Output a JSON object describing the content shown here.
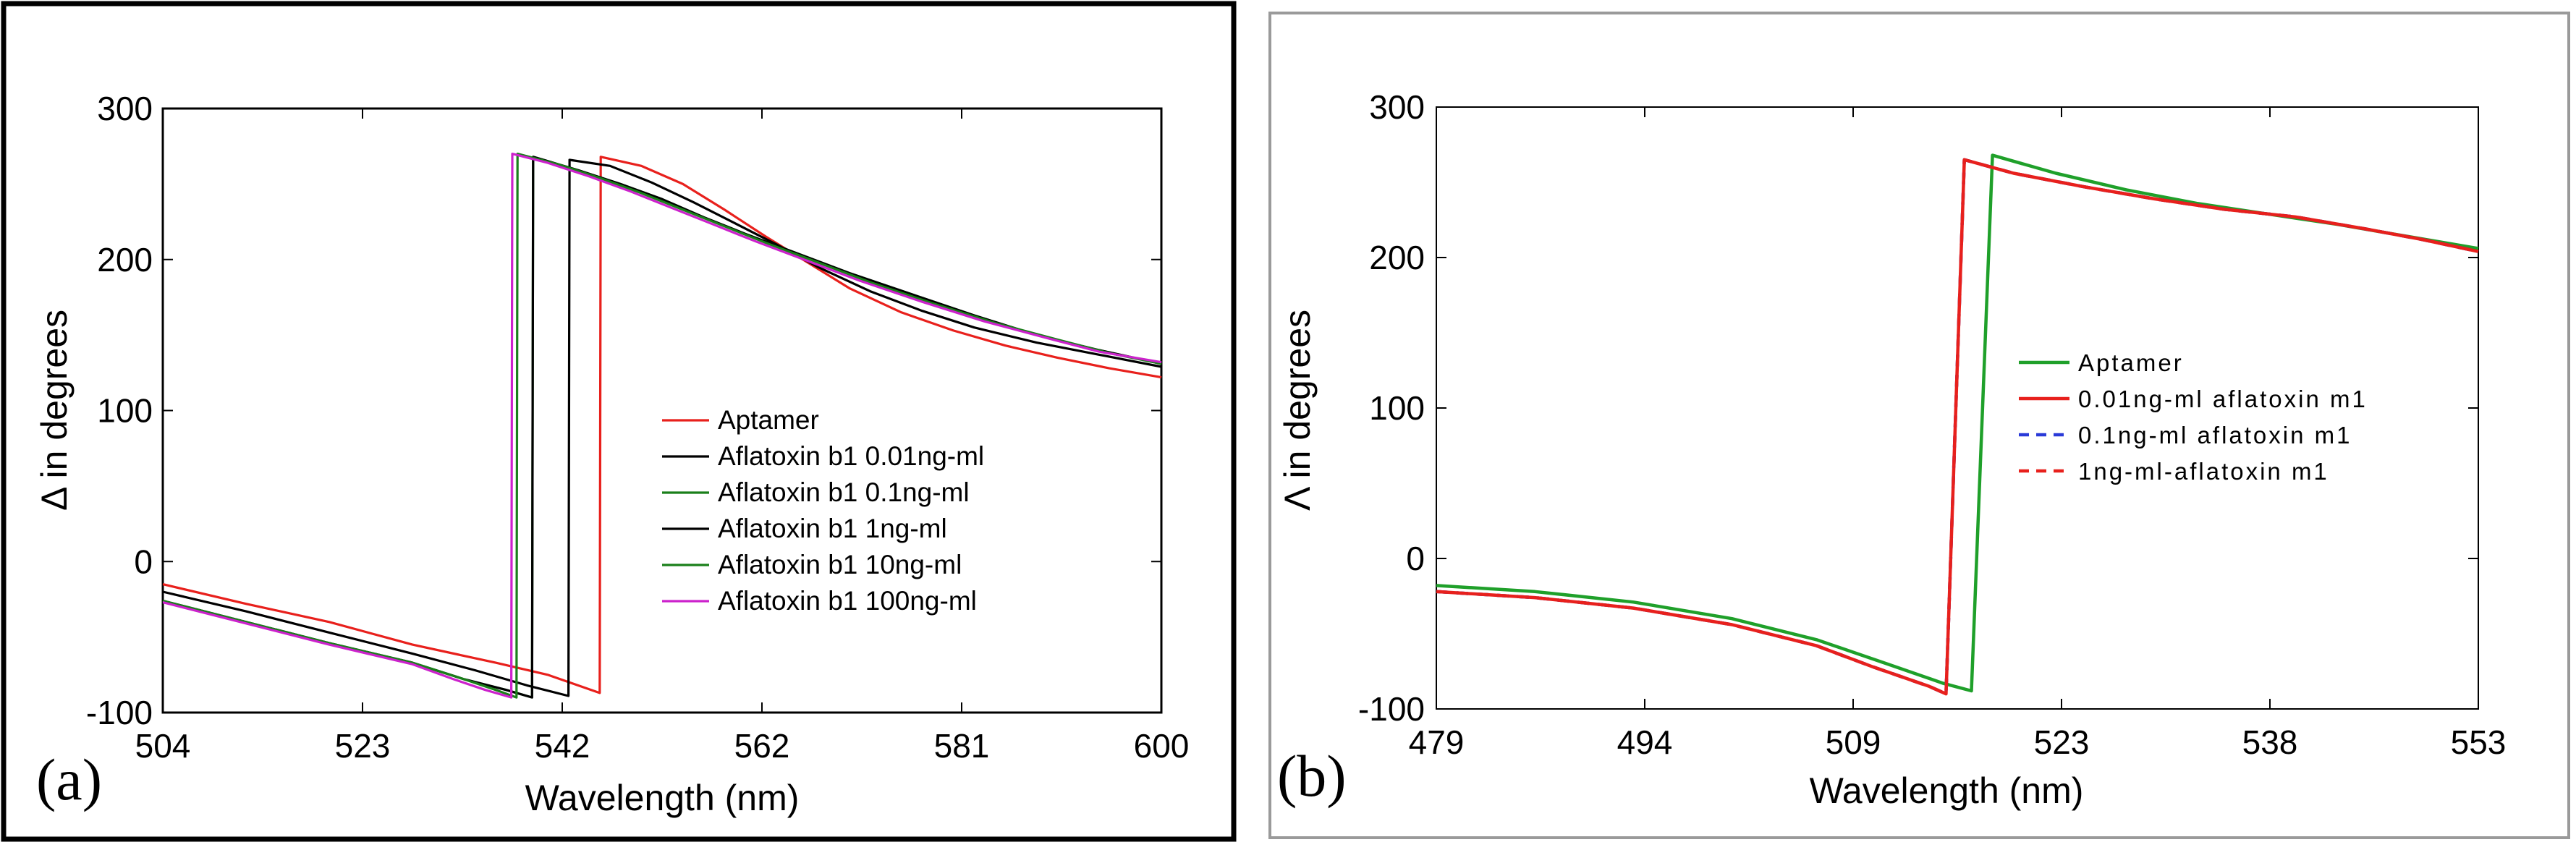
{
  "chart_data": [
    {
      "panel": "(a)",
      "type": "line",
      "xlabel": "Wavelength (nm)",
      "ylabel": "Δ in degrees",
      "xlim": [
        504,
        600
      ],
      "ylim": [
        -100,
        300
      ],
      "xticks": [
        "504",
        "523",
        "542",
        "562",
        "581",
        "600"
      ],
      "yticks": [
        "-100",
        "0",
        "100",
        "200",
        "300"
      ],
      "legend_position": "center-right",
      "series": [
        {
          "name": "Aptamer",
          "color": "#e8201c",
          "dash": "solid",
          "points": [
            [
              504,
              -15
            ],
            [
              512,
              -28
            ],
            [
              520,
              -40
            ],
            [
              528,
              -55
            ],
            [
              536,
              -67
            ],
            [
              541,
              -75
            ],
            [
              546,
              -87
            ],
            [
              546.1,
              268
            ],
            [
              550,
              262
            ],
            [
              554,
              250
            ],
            [
              558,
              233
            ],
            [
              562,
              215
            ],
            [
              566,
              198
            ],
            [
              570,
              181
            ],
            [
              575,
              165
            ],
            [
              580,
              153
            ],
            [
              585,
              143
            ],
            [
              590,
              135
            ],
            [
              595,
              128
            ],
            [
              600,
              122
            ]
          ]
        },
        {
          "name": "Aflatoxin b1 0.01ng-ml",
          "color": "#000000",
          "dash": "solid",
          "points": [
            [
              504,
              -20
            ],
            [
              512,
              -33
            ],
            [
              520,
              -47
            ],
            [
              528,
              -61
            ],
            [
              534,
              -72
            ],
            [
              539,
              -82
            ],
            [
              543,
              -89
            ],
            [
              543.1,
              266
            ],
            [
              547,
              262
            ],
            [
              551,
              251
            ],
            [
              555,
              238
            ],
            [
              559,
              224
            ],
            [
              563,
              210
            ],
            [
              567,
              195
            ],
            [
              572,
              179
            ],
            [
              577,
              166
            ],
            [
              582,
              155
            ],
            [
              588,
              145
            ],
            [
              594,
              137
            ],
            [
              600,
              129
            ]
          ]
        },
        {
          "name": "Aflatoxin b1 0.1ng-ml",
          "color": "#1a7f1a",
          "dash": "solid",
          "points": [
            [
              504,
              -26
            ],
            [
              512,
              -40
            ],
            [
              520,
              -54
            ],
            [
              528,
              -67
            ],
            [
              533,
              -78
            ],
            [
              537,
              -85
            ],
            [
              539.5,
              -90
            ],
            [
              539.6,
              268
            ],
            [
              544,
              259
            ],
            [
              548,
              250
            ],
            [
              552,
              240
            ],
            [
              556,
              228
            ],
            [
              560,
              217
            ],
            [
              565,
              204
            ],
            [
              570,
              191
            ],
            [
              576,
              177
            ],
            [
              582,
              163
            ],
            [
              588,
              150
            ],
            [
              594,
              140
            ],
            [
              600,
              131
            ]
          ]
        },
        {
          "name": "Aflatoxin b1 1ng-ml",
          "color": "#000000",
          "dash": "solid",
          "points": [
            [
              504,
              -26
            ],
            [
              512,
              -40
            ],
            [
              520,
              -54
            ],
            [
              528,
              -67
            ],
            [
              533,
              -78
            ],
            [
              537,
              -85
            ],
            [
              539.5,
              -90
            ],
            [
              539.6,
              268
            ],
            [
              544,
              259
            ],
            [
              548,
              250
            ],
            [
              552,
              240
            ],
            [
              556,
              228
            ],
            [
              560,
              217
            ],
            [
              565,
              204
            ],
            [
              570,
              191
            ],
            [
              576,
              177
            ],
            [
              582,
              163
            ],
            [
              588,
              150
            ],
            [
              594,
              140
            ],
            [
              600,
              131
            ]
          ]
        },
        {
          "name": "Aflatoxin b1 10ng-ml",
          "color": "#1a7f1a",
          "dash": "solid",
          "points": [
            [
              504,
              -26
            ],
            [
              512,
              -40
            ],
            [
              520,
              -54
            ],
            [
              528,
              -67
            ],
            [
              533,
              -78
            ],
            [
              536,
              -85
            ],
            [
              538,
              -90
            ],
            [
              538.1,
              270
            ],
            [
              542,
              263
            ],
            [
              546,
              254
            ],
            [
              550,
              244
            ],
            [
              554,
              233
            ],
            [
              558,
              222
            ],
            [
              562,
              211
            ],
            [
              567,
              198
            ],
            [
              572,
              185
            ],
            [
              578,
              171
            ],
            [
              584,
              158
            ],
            [
              590,
              147
            ],
            [
              595,
              138
            ],
            [
              600,
              131
            ]
          ]
        },
        {
          "name": "Aflatoxin b1 100ng-ml",
          "color": "#cc22cc",
          "dash": "solid",
          "points": [
            [
              504,
              -27
            ],
            [
              512,
              -41
            ],
            [
              520,
              -55
            ],
            [
              528,
              -68
            ],
            [
              532,
              -78
            ],
            [
              535,
              -85
            ],
            [
              537.5,
              -90
            ],
            [
              537.6,
              270
            ],
            [
              541,
              264
            ],
            [
              545,
              255
            ],
            [
              549,
              245
            ],
            [
              553,
              234
            ],
            [
              557,
              223
            ],
            [
              561,
              212
            ],
            [
              566,
              199
            ],
            [
              571,
              186
            ],
            [
              577,
              172
            ],
            [
              583,
              159
            ],
            [
              589,
              148
            ],
            [
              594,
              139
            ],
            [
              600,
              132
            ]
          ]
        }
      ]
    },
    {
      "panel": "(b)",
      "type": "line",
      "xlabel": "Wavelength (nm)",
      "ylabel": "Λ in degrees",
      "xlim": [
        479,
        553
      ],
      "ylim": [
        -100,
        300
      ],
      "xticks": [
        "479",
        "494",
        "509",
        "523",
        "538",
        "553"
      ],
      "yticks": [
        "-100",
        "0",
        "100",
        "200",
        "300"
      ],
      "legend_position": "center-right",
      "series": [
        {
          "name": "Aptamer",
          "color": "#1fa02a",
          "dash": "solid",
          "points": [
            [
              479,
              -18
            ],
            [
              486,
              -22
            ],
            [
              493,
              -29
            ],
            [
              500,
              -40
            ],
            [
              506,
              -54
            ],
            [
              511,
              -70
            ],
            [
              515,
              -83
            ],
            [
              517,
              -88
            ],
            [
              518.5,
              268
            ],
            [
              523,
              256
            ],
            [
              528,
              245
            ],
            [
              533,
              236
            ],
            [
              538,
              229
            ],
            [
              543,
              222
            ],
            [
              548,
              214
            ],
            [
              553,
              206
            ]
          ]
        },
        {
          "name": "0.01ng-ml aflatoxin m1",
          "color": "#e8201c",
          "dash": "solid",
          "points": [
            [
              479,
              -22
            ],
            [
              486,
              -26
            ],
            [
              493,
              -33
            ],
            [
              500,
              -44
            ],
            [
              506,
              -58
            ],
            [
              510,
              -72
            ],
            [
              514,
              -85
            ],
            [
              515.2,
              -90
            ],
            [
              516.5,
              265
            ],
            [
              520,
              256
            ],
            [
              525,
              247
            ],
            [
              530,
              239
            ],
            [
              535,
              232
            ],
            [
              540,
              227
            ],
            [
              545,
              219
            ],
            [
              549,
              212
            ],
            [
              553,
              204
            ]
          ]
        },
        {
          "name": "0.1ng-ml aflatoxin m1",
          "color": "#2a3ad8",
          "dash": "dashed",
          "points": [
            [
              479,
              -22
            ],
            [
              486,
              -26
            ],
            [
              493,
              -33
            ],
            [
              500,
              -44
            ],
            [
              506,
              -58
            ],
            [
              510,
              -72
            ],
            [
              514,
              -85
            ],
            [
              515.2,
              -90
            ],
            [
              516.5,
              265
            ],
            [
              520,
              256
            ],
            [
              525,
              247
            ],
            [
              530,
              239
            ],
            [
              535,
              232
            ],
            [
              540,
              227
            ],
            [
              545,
              219
            ],
            [
              549,
              212
            ],
            [
              553,
              204
            ]
          ]
        },
        {
          "name": "1ng-ml-aflatoxin m1",
          "color": "#e8201c",
          "dash": "dashed",
          "points": [
            [
              479,
              -22
            ],
            [
              486,
              -26
            ],
            [
              493,
              -33
            ],
            [
              500,
              -44
            ],
            [
              506,
              -58
            ],
            [
              510,
              -72
            ],
            [
              514,
              -85
            ],
            [
              515.2,
              -90
            ],
            [
              516.5,
              265
            ],
            [
              520,
              256
            ],
            [
              525,
              247
            ],
            [
              530,
              239
            ],
            [
              535,
              232
            ],
            [
              540,
              227
            ],
            [
              545,
              219
            ],
            [
              549,
              212
            ],
            [
              553,
              204
            ]
          ]
        }
      ]
    }
  ]
}
